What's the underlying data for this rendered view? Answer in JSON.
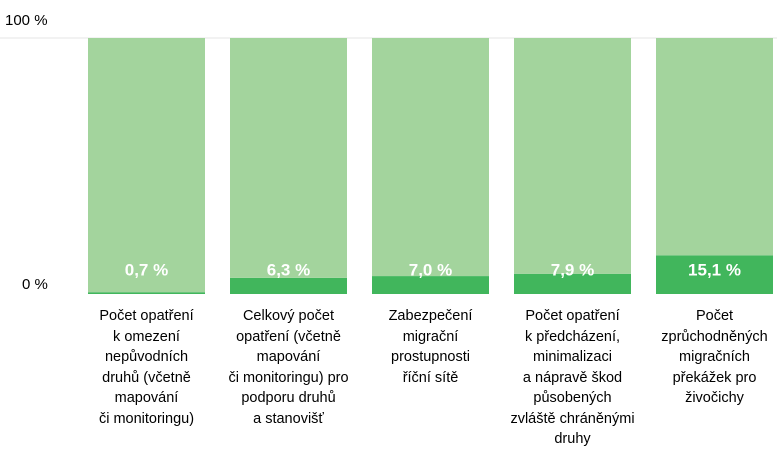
{
  "chart_data": {
    "type": "stacked_bar",
    "categories": [
      "Počet opatření\nk omezení\nnepůvodních\ndruhů (včetně\nmapování\nči monitoringu)",
      "Celkový počet\nopatření (včetně\nmapování\nči  monitoringu) pro\npodporu druhů\na stanovišť",
      "Zabezpečení\nmigrační\nprostupnosti\nříční sítě",
      "Počet opatření\nk předcházení,\nminimalizaci\na nápravě škod\npůsobených\nzvláště chráněnými\ndruhy",
      "Počet\nzprůchodněných\nmigračních\npřekážek pro\nživočichy"
    ],
    "series": [
      {
        "color": "#41b65c",
        "values": [
          0.7,
          6.3,
          7.0,
          7.9,
          15.1
        ],
        "value_labels": [
          "0,7 %",
          "6,3 %",
          "7,0 %",
          "7,9 %",
          "15,1 %"
        ]
      },
      {
        "color": "#a3d49d",
        "values": [
          99.3,
          93.7,
          93.0,
          92.1,
          84.9
        ]
      }
    ],
    "ylim": [
      0,
      100
    ],
    "yticks": [
      {
        "value": 0,
        "label": "0 %"
      },
      {
        "value": 100,
        "label": "100 %"
      }
    ]
  }
}
